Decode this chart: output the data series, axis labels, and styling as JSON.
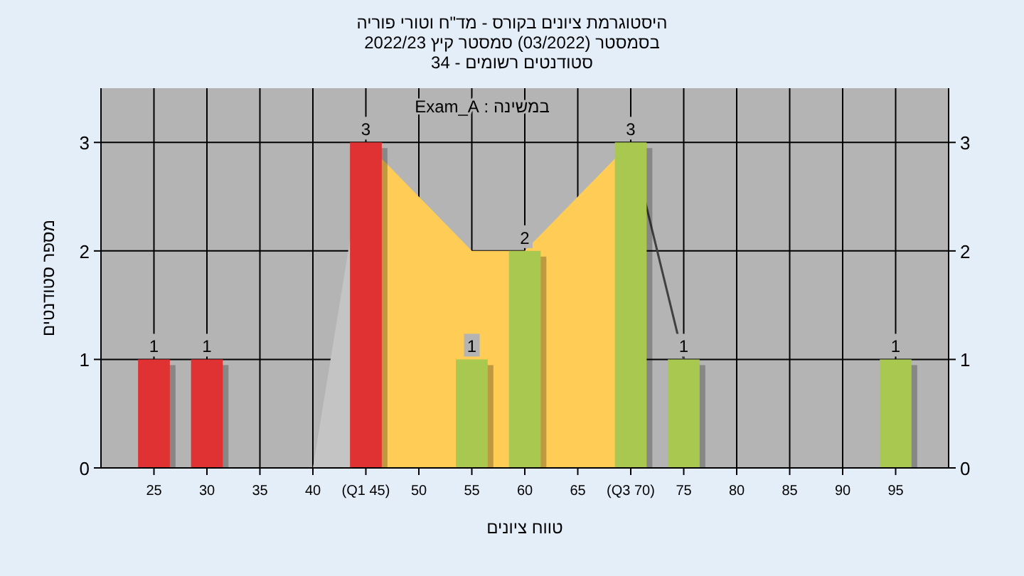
{
  "chart_data": {
    "type": "bar",
    "title": "היסטוגרמת ציונים בקורס - מד\"ח וטורי פוריה",
    "subtitle": [
      "בסמסטר (03/2022) סמסטר קיץ 2022/23",
      "סטודנטים רשומים - 34"
    ],
    "xlabel": "טווח ציונים",
    "ylabel": "מספר סטודנטים",
    "annotations": [
      "במשינה : Exam_A"
    ],
    "series": [
      {
        "type": "area",
        "color": "#c4c4c4",
        "x": [
          40,
          45
        ],
        "values": [
          0,
          3
        ]
      },
      {
        "type": "area",
        "color": "#ffcc55",
        "x": [
          45,
          55,
          60,
          70
        ],
        "values": [
          3,
          2,
          2,
          3
        ]
      },
      {
        "type": "line",
        "color": "#404040",
        "x": [
          70,
          75
        ],
        "values": [
          3,
          1
        ]
      },
      {
        "type": "bar",
        "x": [
          25,
          30,
          45,
          55,
          60,
          70,
          75,
          95
        ],
        "values": [
          1,
          1,
          3,
          1,
          2,
          3,
          1,
          1
        ],
        "value_labels": [
          "1",
          "1",
          "3",
          "1",
          "2",
          "3",
          "1",
          "1"
        ],
        "colors": [
          "#e03232",
          "#e03232",
          "#e03232",
          "#a8c850",
          "#a8c850",
          "#a8c850",
          "#a8c850",
          "#a8c850"
        ]
      }
    ],
    "xlim": [
      20,
      100
    ],
    "xticks": [
      25,
      30,
      35,
      40,
      {
        "value": 45,
        "label": "(Q1 45)"
      },
      50,
      55,
      60,
      65,
      {
        "value": 70,
        "label": "(Q3 70)"
      },
      75,
      80,
      85,
      90,
      95
    ],
    "ylim": [
      0,
      3.5
    ],
    "yticks": [
      0,
      1,
      2,
      3
    ],
    "y2lim": [
      0,
      3.5
    ],
    "y2ticks": [
      0,
      1,
      2,
      3
    ],
    "grid": true
  }
}
